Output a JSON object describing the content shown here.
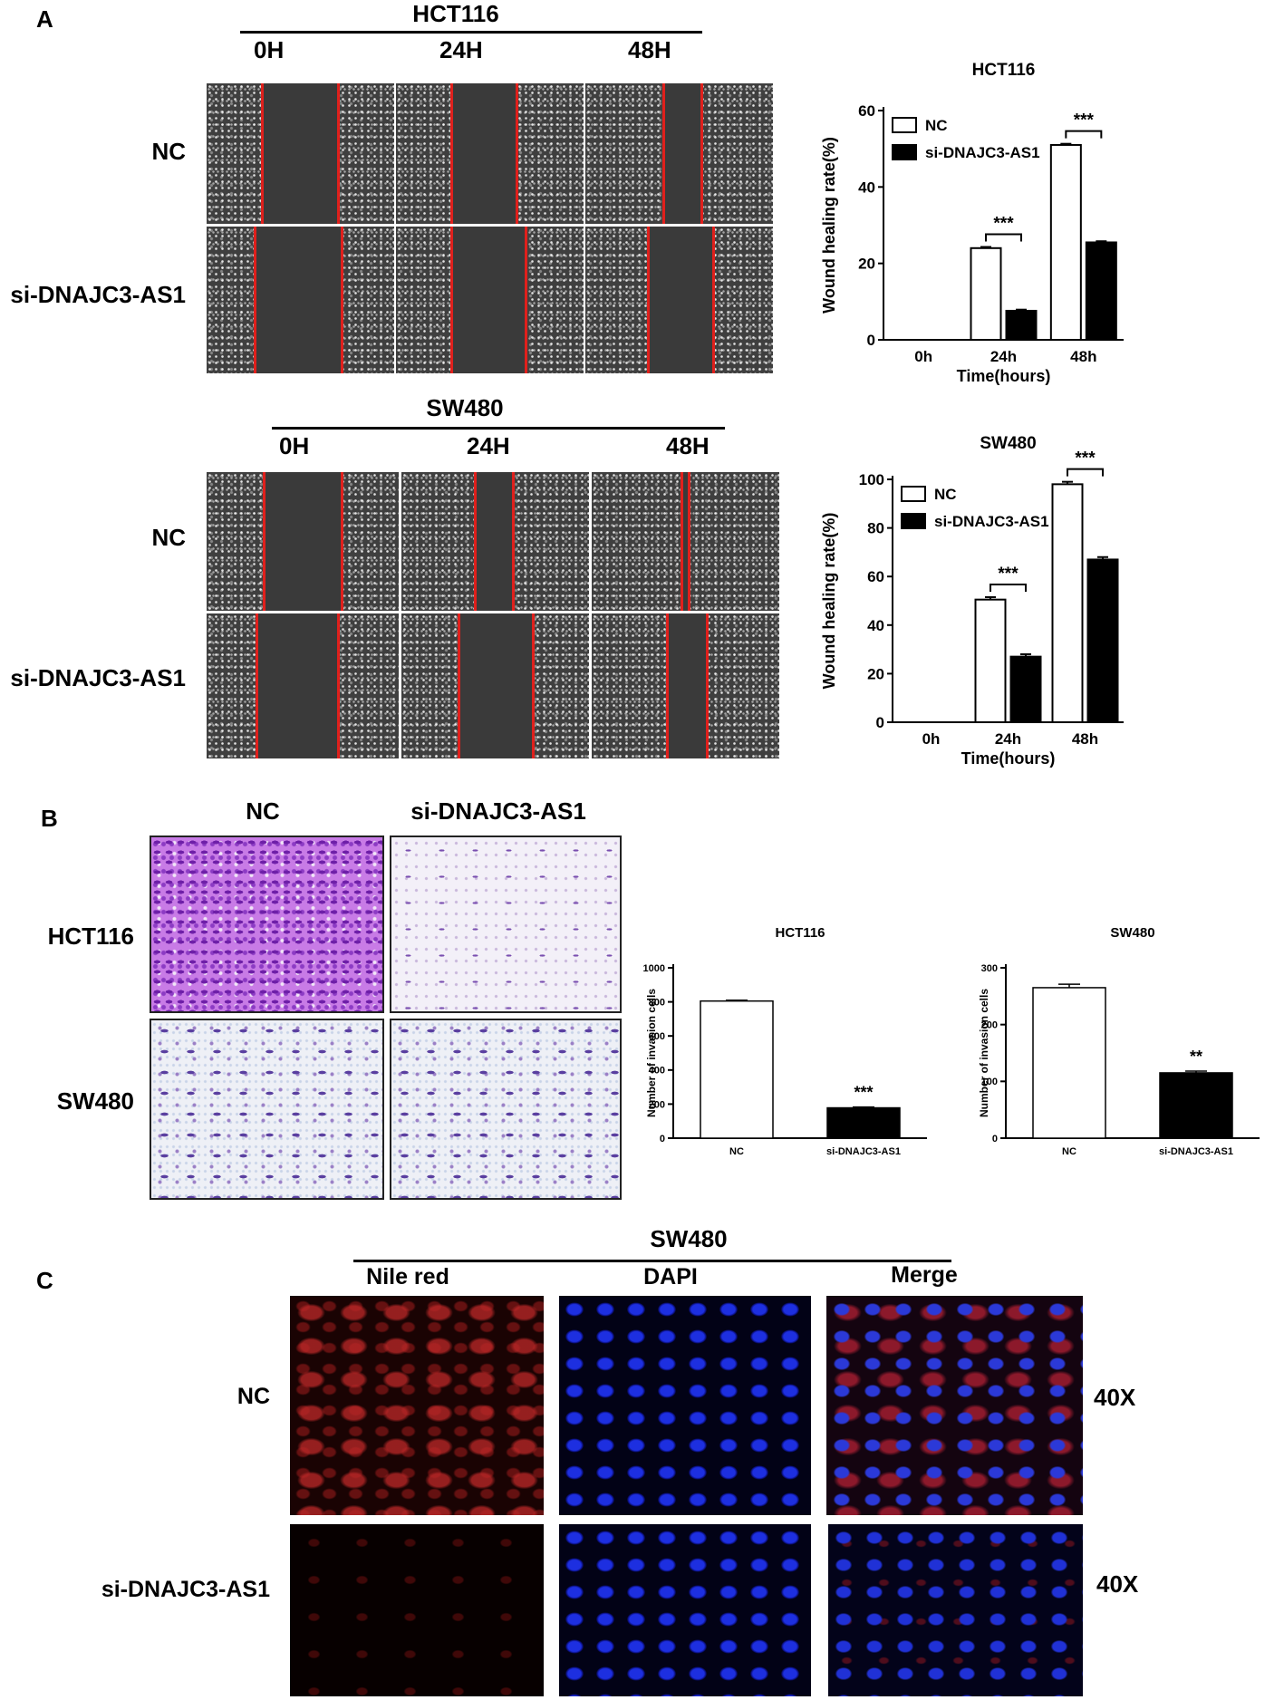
{
  "panels": {
    "A": {
      "letter": "A",
      "hct116": {
        "header": "HCT116",
        "timepoints": [
          "0H",
          "24H",
          "48H"
        ],
        "rows": [
          "NC",
          "si-DNAJC3-AS1"
        ]
      },
      "sw480": {
        "header": "SW480",
        "timepoints": [
          "0H",
          "24H",
          "48H"
        ],
        "rows": [
          "NC",
          "si-DNAJC3-AS1"
        ]
      }
    },
    "B": {
      "letter": "B",
      "columns": [
        "NC",
        "si-DNAJC3-AS1"
      ],
      "rows": [
        "HCT116",
        "SW480"
      ]
    },
    "C": {
      "letter": "C",
      "header": "SW480",
      "columns": [
        "Nile red",
        "DAPI",
        "Merge"
      ],
      "rows": [
        "NC",
        "si-DNAJC3-AS1"
      ],
      "magnification": [
        "40X",
        "40X"
      ]
    }
  },
  "colors": {
    "scratch_edge": "#e0201c",
    "bar_nc": "#ffffff",
    "bar_si": "#000000"
  },
  "chart_data": [
    {
      "id": "wound-hct116",
      "type": "bar",
      "title": "HCT116",
      "xlabel": "Time(hours)",
      "ylabel": "Wound healing rate(%)",
      "categories": [
        "0h",
        "24h",
        "48h"
      ],
      "ylim": [
        0,
        60
      ],
      "yticks": [
        0,
        20,
        40,
        60
      ],
      "legend": "top-left",
      "series": [
        {
          "name": "NC",
          "values": [
            0,
            24,
            51
          ],
          "errors": [
            0,
            0.3,
            0.3
          ],
          "fill": "#ffffff"
        },
        {
          "name": "si-DNAJC3-AS1",
          "values": [
            0,
            7.6,
            25.5
          ],
          "errors": [
            0,
            0.3,
            0.3
          ],
          "fill": "#000000"
        }
      ],
      "significance": [
        {
          "category": "24h",
          "label": "***"
        },
        {
          "category": "48h",
          "label": "***"
        }
      ]
    },
    {
      "id": "wound-sw480",
      "type": "bar",
      "title": "SW480",
      "xlabel": "Time(hours)",
      "ylabel": "Wound healing rate(%)",
      "categories": [
        "0h",
        "24h",
        "48h"
      ],
      "ylim": [
        0,
        100
      ],
      "yticks": [
        0,
        20,
        40,
        60,
        80,
        100
      ],
      "legend": "top-left",
      "series": [
        {
          "name": "NC",
          "values": [
            0,
            50.5,
            98
          ],
          "errors": [
            0,
            1,
            1
          ],
          "fill": "#ffffff"
        },
        {
          "name": "si-DNAJC3-AS1",
          "values": [
            0,
            27,
            67
          ],
          "errors": [
            0,
            1,
            1
          ],
          "fill": "#000000"
        }
      ],
      "significance": [
        {
          "category": "24h",
          "label": "***"
        },
        {
          "category": "48h",
          "label": "***"
        }
      ]
    },
    {
      "id": "invasion-hct116",
      "type": "bar",
      "title": "HCT116",
      "xlabel": "",
      "ylabel": "Number of invasion cells",
      "categories": [
        "NC",
        "si-DNAJC3-AS1"
      ],
      "ylim": [
        0,
        1000
      ],
      "yticks": [
        0,
        200,
        400,
        600,
        800,
        1000
      ],
      "values": [
        805,
        178
      ],
      "errors": [
        5,
        5
      ],
      "fills": [
        "#ffffff",
        "#000000"
      ],
      "significance": [
        {
          "category": "si-DNAJC3-AS1",
          "label": "***"
        }
      ]
    },
    {
      "id": "invasion-sw480",
      "type": "bar",
      "title": "SW480",
      "xlabel": "",
      "ylabel": "Number of invasion cells",
      "categories": [
        "NC",
        "si-DNAJC3-AS1"
      ],
      "ylim": [
        0,
        300
      ],
      "yticks": [
        0,
        100,
        200,
        300
      ],
      "values": [
        265,
        115
      ],
      "errors": [
        6,
        3
      ],
      "fills": [
        "#ffffff",
        "#000000"
      ],
      "significance": [
        {
          "category": "si-DNAJC3-AS1",
          "label": "**"
        }
      ]
    }
  ]
}
